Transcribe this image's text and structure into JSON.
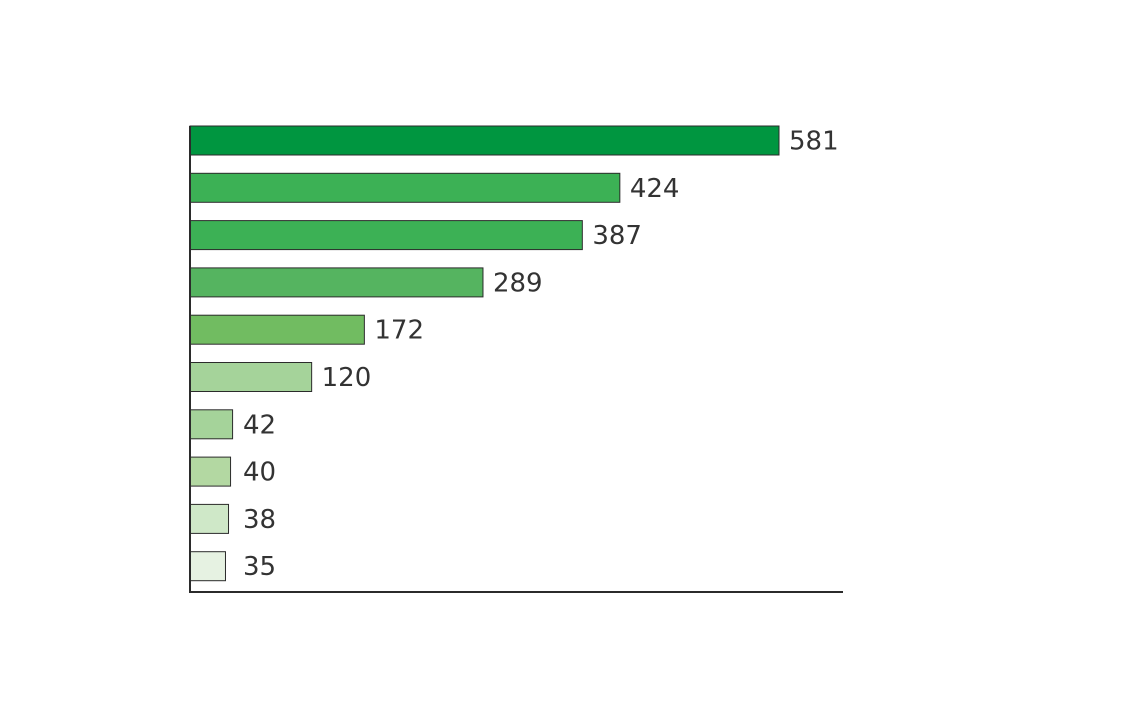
{
  "chart_data": {
    "type": "bar",
    "orientation": "horizontal",
    "title": "",
    "xlabel": "",
    "ylabel": "",
    "xlim": [
      0,
      581
    ],
    "grid": false,
    "legend": "none",
    "series": [
      {
        "values": [
          581,
          424,
          387,
          289,
          172,
          120,
          42,
          40,
          38,
          35
        ]
      }
    ],
    "data_labels": [
      "581",
      "424",
      "387",
      "289",
      "172",
      "120",
      "42",
      "40",
      "38",
      "35"
    ],
    "colors": [
      "#009640",
      "#3cb155",
      "#3cb155",
      "#55b460",
      "#71bc61",
      "#a5d39a",
      "#a5d39a",
      "#b3d8a2",
      "#cfe8c8",
      "#e6f2e2"
    ],
    "axis_color": "#2b2b2b",
    "bar_stroke": "#2b2b2b",
    "label_color": "#333333"
  }
}
